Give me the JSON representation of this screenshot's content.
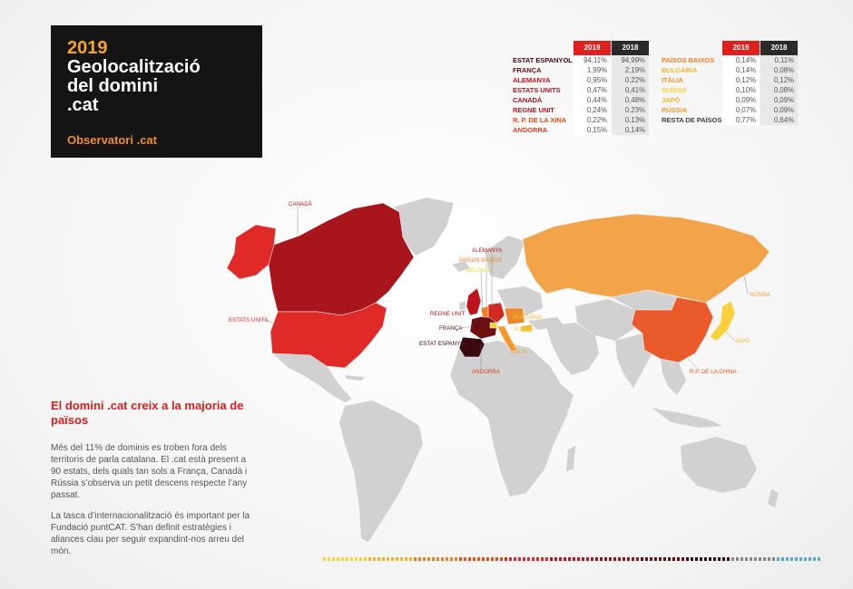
{
  "title": {
    "year": "2019",
    "main": "Geolocalització\ndel domini\n.cat",
    "subtitle": "Observatori .cat"
  },
  "table_headers": {
    "y2019": "2019",
    "y2018": "2018"
  },
  "table_left": [
    {
      "name": "ESTAT ESPANYOL",
      "v2019": "94,11%",
      "v2018": "94,99%",
      "color": "#3a0a10"
    },
    {
      "name": "FRANÇA",
      "v2019": "1,99%",
      "v2018": "2,19%",
      "color": "#6b0f12"
    },
    {
      "name": "ALEMANYA",
      "v2019": "0,95%",
      "v2018": "0,22%",
      "color": "#c0141b"
    },
    {
      "name": "ESTATS UNITS",
      "v2019": "0,47%",
      "v2018": "0,41%",
      "color": "#b8151d"
    },
    {
      "name": "CANADÀ",
      "v2019": "0,44%",
      "v2018": "0,48%",
      "color": "#9c1318"
    },
    {
      "name": "REGNE UNIT",
      "v2019": "0,24%",
      "v2018": "0,23%",
      "color": "#c0141b"
    },
    {
      "name": "R. P. DE LA XINA",
      "v2019": "0,22%",
      "v2018": "0,13%",
      "color": "#e2521c"
    },
    {
      "name": "ANDORRA",
      "v2019": "0,15%",
      "v2018": "0,14%",
      "color": "#e0401b"
    }
  ],
  "table_right": [
    {
      "name": "PAÏSOS BAIXOS",
      "v2019": "0,14%",
      "v2018": "0,11%",
      "color": "#f07f22"
    },
    {
      "name": "BULGÀRIA",
      "v2019": "0,14%",
      "v2018": "0,08%",
      "color": "#f7b62f"
    },
    {
      "name": "ITÀLIA",
      "v2019": "0,12%",
      "v2018": "0,12%",
      "color": "#f49a28"
    },
    {
      "name": "SUÏSSA",
      "v2019": "0,10%",
      "v2018": "0,08%",
      "color": "#f9d23a"
    },
    {
      "name": "JAPÓ",
      "v2019": "0,09%",
      "v2018": "0,09%",
      "color": "#f6b12c"
    },
    {
      "name": "RÚSSIA",
      "v2019": "0,07%",
      "v2018": "0,09%",
      "color": "#f29a2c"
    },
    {
      "name": "RESTA DE PAÏSOS",
      "v2019": "0,77%",
      "v2018": "0,64%",
      "color": "#444444"
    }
  ],
  "heading": "El domini .cat creix a la majoria de països",
  "paragraph1": "Més del 11% de dominis es troben fora dels territoris de parla catalana. El .cat està present a 90 estats, dels quals tan sols a França, Canadà i Rússia s’observa un petit descens respecte l’any passat.",
  "paragraph2": "La tasca d’internacionalització és important per la Fundació puntCAT. S’han definit estratègies i aliances clau per seguir expandint-nos arreu del món.",
  "map_labels": {
    "canada": "CANADÀ",
    "usa": "ESTATS UNITS",
    "uk": "REGNE UNIT",
    "france": "FRANÇA",
    "spain": "ESTAT ESPANYOL",
    "andorra": "ANDORRA",
    "germany": "ALEMANYA",
    "netherlands": "PAÏSOS BAIXOS",
    "belgium": "BÈLGICA",
    "bulgaria": "BULGÀRIA",
    "switzerland": "SUÏSSA",
    "italy": "ITÀLIA",
    "russia": "RÚSSIA",
    "japan": "JAPÓ",
    "china": "R.P. DE LA CHINA"
  },
  "map_colors": {
    "land": "#d1d1d1",
    "usa": "#df2a27",
    "canada": "#a8161b",
    "russia": "#f3a34a",
    "china": "#ea5a2b",
    "japan": "#f8d13c",
    "spain": "#3a0a10",
    "france": "#6b0f12",
    "europe_other": "#e98b2a",
    "uk": "#c0141b",
    "germany": "#d22a22"
  }
}
